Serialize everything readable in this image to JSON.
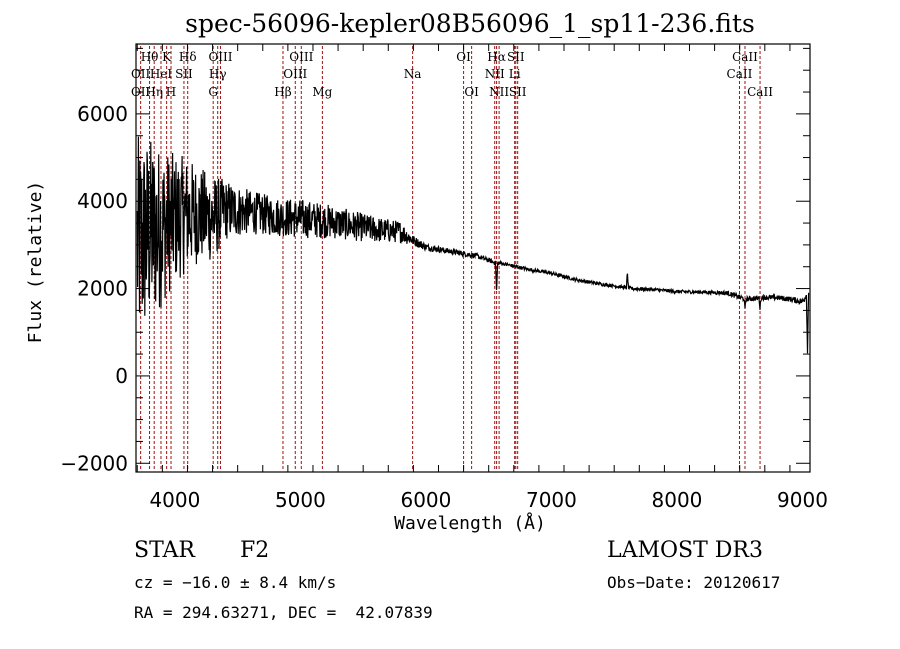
{
  "chart_data": {
    "type": "line",
    "title": "spec-56096-kepler08B56096_1_sp11-236.fits",
    "xlabel": "Wavelength (Å)",
    "ylabel": "Flux (relative)",
    "xlim": [
      3690,
      9060
    ],
    "ylim": [
      -2200,
      7600
    ],
    "xticks": [
      4000,
      5000,
      6000,
      7000,
      8000,
      9000
    ],
    "xtick_labels": [
      "4000",
      "5000",
      "6000",
      "7000",
      "8000",
      "9000"
    ],
    "yticks": [
      -2000,
      0,
      2000,
      4000,
      6000
    ],
    "ytick_labels": [
      "−2000",
      "0",
      "2000",
      "4000",
      "6000"
    ],
    "grid": false,
    "line_color": "#000000",
    "marker_color": "#a01010",
    "spectrum_continuum": {
      "description": "Noisy stellar spectrum; very noisy below 4400 Å, decreasing continuum",
      "x": [
        3700,
        3800,
        3900,
        4000,
        4100,
        4200,
        4300,
        4400,
        4600,
        4800,
        5000,
        5200,
        5400,
        5600,
        5800,
        5900,
        6000,
        6200,
        6400,
        6500,
        6560,
        6600,
        6800,
        7000,
        7200,
        7400,
        7600,
        7650,
        7800,
        8000,
        8200,
        8400,
        8500,
        8550,
        8600,
        8700,
        8800,
        8900,
        9000,
        9050
      ],
      "y": [
        3000,
        3300,
        3400,
        3600,
        3700,
        3700,
        3600,
        3800,
        3750,
        3650,
        3600,
        3550,
        3450,
        3350,
        3300,
        3100,
        2950,
        2850,
        2750,
        2650,
        2580,
        2580,
        2450,
        2350,
        2200,
        2100,
        2020,
        2000,
        1980,
        1930,
        1920,
        1900,
        1800,
        1760,
        1770,
        1800,
        1790,
        1760,
        1700,
        1950
      ],
      "noise_amplitude": [
        2500,
        2200,
        1800,
        1500,
        1300,
        1100,
        1000,
        700,
        500,
        450,
        450,
        400,
        350,
        300,
        250,
        120,
        80,
        60,
        60,
        50,
        50,
        40,
        40,
        40,
        40,
        40,
        40,
        40,
        40,
        40,
        40,
        50,
        60,
        60,
        60,
        60,
        60,
        60,
        80,
        100
      ],
      "features": [
        {
          "wavelength": 6563,
          "depth": -700,
          "label": "Halpha absorption"
        },
        {
          "wavelength": 7605,
          "depth": 350,
          "label": "spike"
        },
        {
          "wavelength": 8542,
          "depth": -250,
          "label": "CaII"
        },
        {
          "wavelength": 8662,
          "depth": -250,
          "label": "CaII"
        },
        {
          "wavelength": 9040,
          "depth": -1400,
          "label": "edge dip"
        }
      ]
    },
    "annotations": [
      {
        "label": "OII",
        "wavelength": 3727,
        "row": 2
      },
      {
        "label": "Hθ",
        "wavelength": 3798,
        "row": 1
      },
      {
        "label": "OII",
        "wavelength": 3727,
        "row": 3
      },
      {
        "label": "Hη",
        "wavelength": 3835,
        "row": 3
      },
      {
        "label": "HeI",
        "wavelength": 3889,
        "row": 2
      },
      {
        "label": "K",
        "wavelength": 3934,
        "row": 1
      },
      {
        "label": "H",
        "wavelength": 3969,
        "row": 3
      },
      {
        "label": "SII",
        "wavelength": 4072,
        "row": 2
      },
      {
        "label": "Hδ",
        "wavelength": 4102,
        "row": 1
      },
      {
        "label": "G",
        "wavelength": 4305,
        "row": 3
      },
      {
        "label": "Hγ",
        "wavelength": 4341,
        "row": 2
      },
      {
        "label": "OIII",
        "wavelength": 4363,
        "row": 1
      },
      {
        "label": "Hβ",
        "wavelength": 4861,
        "row": 3
      },
      {
        "label": "OIII",
        "wavelength": 4959,
        "row": 2
      },
      {
        "label": "OIII",
        "wavelength": 5007,
        "row": 1
      },
      {
        "label": "Mg",
        "wavelength": 5175,
        "row": 3
      },
      {
        "label": "Na",
        "wavelength": 5894,
        "row": 2
      },
      {
        "label": "OI",
        "wavelength": 6300,
        "row": 1
      },
      {
        "label": "OI",
        "wavelength": 6364,
        "row": 3
      },
      {
        "label": "NII",
        "wavelength": 6548,
        "row": 2
      },
      {
        "label": "Hα",
        "wavelength": 6563,
        "row": 1
      },
      {
        "label": "NII",
        "wavelength": 6583,
        "row": 3
      },
      {
        "label": "Li",
        "wavelength": 6707,
        "row": 2
      },
      {
        "label": "SII",
        "wavelength": 6716,
        "row": 1
      },
      {
        "label": "SII",
        "wavelength": 6731,
        "row": 3
      },
      {
        "label": "CaII",
        "wavelength": 8498,
        "row": 2
      },
      {
        "label": "CaII",
        "wavelength": 8542,
        "row": 1
      },
      {
        "label": "CaII",
        "wavelength": 8662,
        "row": 3
      }
    ]
  },
  "info": {
    "object_class": "STAR",
    "subclass": "F2",
    "redshift_text": "cz = −16.0 ± 8.4 km/s",
    "coords_text": "RA = 294.63271, DEC =  42.07839",
    "survey": "LAMOST DR3",
    "obs_date_text": "Obs−Date: 20120617"
  }
}
